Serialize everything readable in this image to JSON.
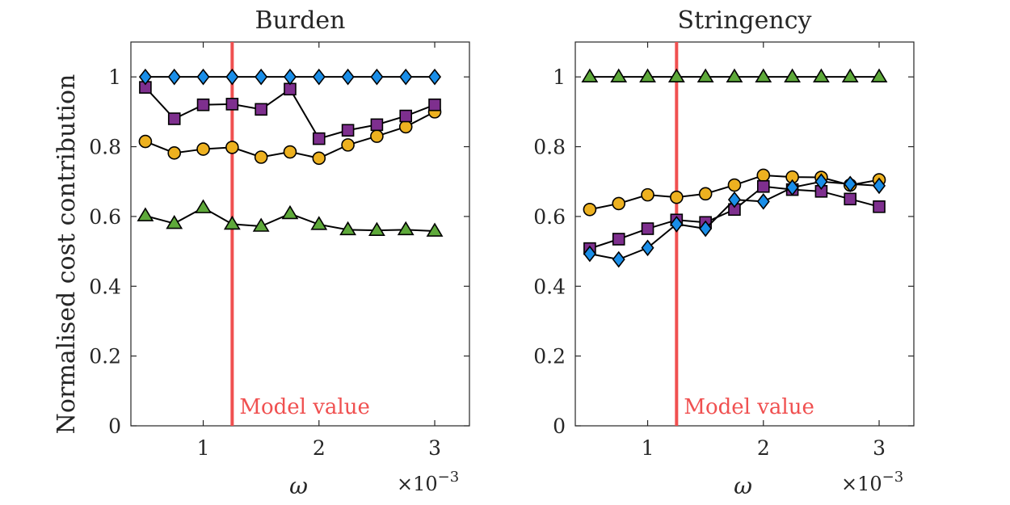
{
  "figure": {
    "ylabel": "Normalised cost contribution",
    "model_label": "Model value",
    "exponent_base": "×10",
    "exponent_power": "−3"
  },
  "colors": {
    "model_line": "#f05050",
    "purple": "#7e2f8e",
    "blue": "#1a8ee8",
    "orange": "#edb120",
    "green": "#5ea93a",
    "axis": "#262626"
  },
  "chart_data": [
    {
      "type": "line",
      "title": "Burden",
      "xlabel": "ω",
      "ylabel": "Normalised cost contribution",
      "x_scale_factor": "×10^-3",
      "xlim": [
        0.375,
        3.3
      ],
      "ylim": [
        0,
        1.1
      ],
      "xticks": [
        1,
        2,
        3
      ],
      "yticks": [
        0,
        0.2,
        0.4,
        0.6,
        0.8,
        1
      ],
      "grid": false,
      "model_value_x": 1.25,
      "x": [
        0.5,
        0.75,
        1.0,
        1.25,
        1.5,
        1.75,
        2.0,
        2.25,
        2.5,
        2.75,
        3.0
      ],
      "series": [
        {
          "marker": "diamond",
          "color": "blue",
          "values": [
            1.0,
            1.0,
            1.0,
            1.0,
            1.0,
            1.0,
            1.0,
            1.0,
            1.0,
            1.0,
            1.0
          ]
        },
        {
          "marker": "square",
          "color": "purple",
          "values": [
            0.97,
            0.88,
            0.92,
            0.922,
            0.907,
            0.965,
            0.823,
            0.847,
            0.863,
            0.888,
            0.92
          ]
        },
        {
          "marker": "circle",
          "color": "orange",
          "values": [
            0.815,
            0.782,
            0.793,
            0.798,
            0.77,
            0.785,
            0.767,
            0.805,
            0.83,
            0.857,
            0.9
          ]
        },
        {
          "marker": "triangle",
          "color": "green",
          "values": [
            0.602,
            0.58,
            0.625,
            0.578,
            0.572,
            0.608,
            0.577,
            0.562,
            0.56,
            0.562,
            0.558
          ]
        }
      ]
    },
    {
      "type": "line",
      "title": "Stringency",
      "xlabel": "ω",
      "ylabel": "",
      "x_scale_factor": "×10^-3",
      "xlim": [
        0.375,
        3.3
      ],
      "ylim": [
        0,
        1.1
      ],
      "xticks": [
        1,
        2,
        3
      ],
      "yticks": [
        0,
        0.2,
        0.4,
        0.6,
        0.8,
        1
      ],
      "grid": false,
      "model_value_x": 1.25,
      "x": [
        0.5,
        0.75,
        1.0,
        1.25,
        1.5,
        1.75,
        2.0,
        2.25,
        2.5,
        2.75,
        3.0
      ],
      "series": [
        {
          "marker": "triangle",
          "color": "green",
          "values": [
            1.0,
            1.0,
            1.0,
            1.0,
            1.0,
            1.0,
            1.0,
            1.0,
            1.0,
            1.0,
            1.0
          ]
        },
        {
          "marker": "circle",
          "color": "orange",
          "values": [
            0.62,
            0.637,
            0.662,
            0.655,
            0.665,
            0.69,
            0.718,
            0.713,
            0.712,
            0.69,
            0.705
          ]
        },
        {
          "marker": "square",
          "color": "purple",
          "values": [
            0.508,
            0.535,
            0.565,
            0.59,
            0.583,
            0.62,
            0.686,
            0.677,
            0.672,
            0.65,
            0.628
          ]
        },
        {
          "marker": "diamond",
          "color": "blue",
          "values": [
            0.493,
            0.477,
            0.51,
            0.578,
            0.565,
            0.648,
            0.643,
            0.683,
            0.7,
            0.693,
            0.688
          ]
        }
      ]
    }
  ]
}
